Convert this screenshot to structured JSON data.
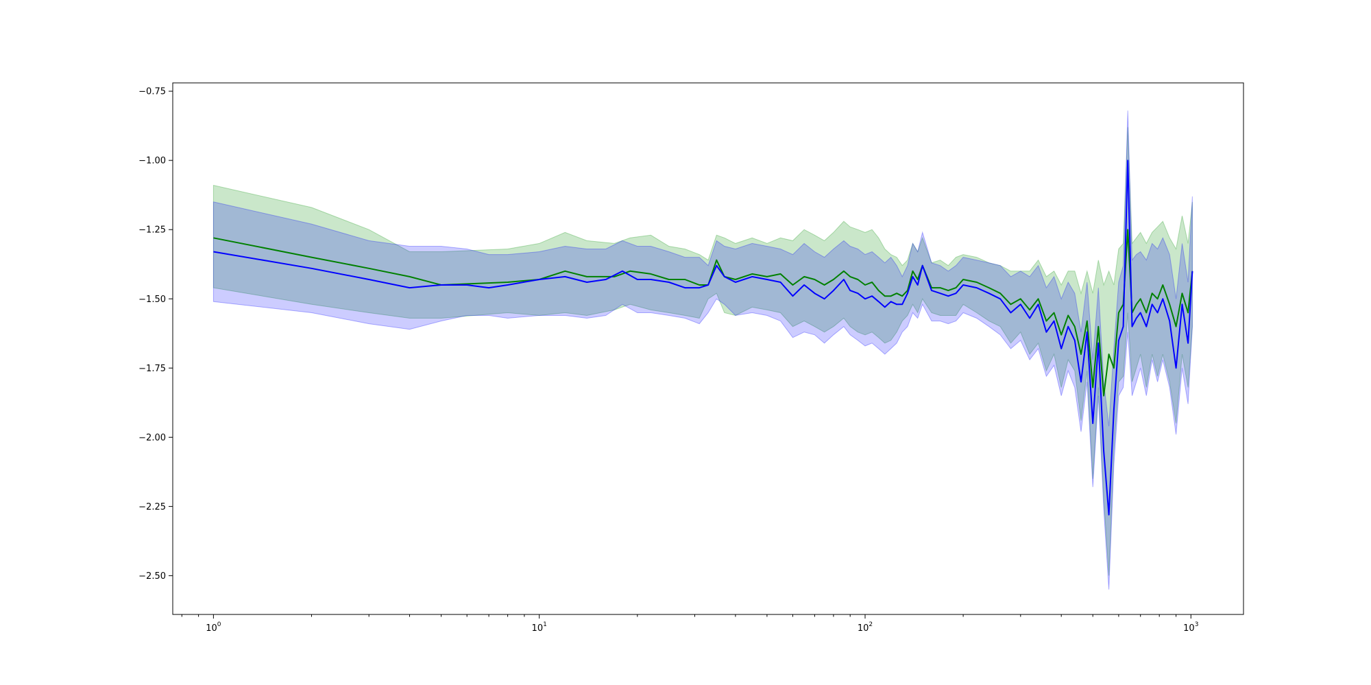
{
  "chart_data": {
    "type": "line",
    "title": "",
    "xlabel": "",
    "ylabel": "",
    "x_scale": "log",
    "xlim": [
      0.75,
      1450
    ],
    "ylim": [
      -2.64,
      -0.72
    ],
    "grid": false,
    "legend": "none",
    "x_ticks": [
      {
        "value": 1,
        "base": "10",
        "exp": "0"
      },
      {
        "value": 10,
        "base": "10",
        "exp": "1"
      },
      {
        "value": 100,
        "base": "10",
        "exp": "2"
      },
      {
        "value": 1000,
        "base": "10",
        "exp": "3"
      }
    ],
    "y_ticks": [
      {
        "value": -0.75,
        "label": "−0.75"
      },
      {
        "value": -1.0,
        "label": "−1.00"
      },
      {
        "value": -1.25,
        "label": "−1.25"
      },
      {
        "value": -1.5,
        "label": "−1.50"
      },
      {
        "value": -1.75,
        "label": "−1.75"
      },
      {
        "value": -2.0,
        "label": "−2.00"
      },
      {
        "value": -2.25,
        "label": "−2.25"
      },
      {
        "value": -2.5,
        "label": "−2.50"
      }
    ],
    "series": [
      {
        "color": "#008000",
        "band_color": "#2ca02c",
        "band_opacity": 0.25,
        "x": [
          1,
          2,
          3,
          4,
          5,
          8,
          10,
          12,
          14,
          17,
          19,
          22,
          25,
          28,
          31,
          33,
          35,
          37,
          40,
          45,
          50,
          55,
          60,
          65,
          70,
          75,
          80,
          86,
          90,
          95,
          100,
          105,
          110,
          115,
          120,
          125,
          130,
          135,
          140,
          145,
          150,
          160,
          170,
          180,
          190,
          200,
          220,
          240,
          260,
          280,
          300,
          320,
          340,
          360,
          380,
          400,
          420,
          440,
          460,
          480,
          500,
          520,
          540,
          560,
          580,
          600,
          620,
          640,
          660,
          680,
          700,
          730,
          760,
          790,
          820,
          860,
          900,
          940,
          980,
          1010
        ],
        "y": [
          -1.28,
          -1.35,
          -1.39,
          -1.42,
          -1.45,
          -1.44,
          -1.43,
          -1.4,
          -1.42,
          -1.42,
          -1.4,
          -1.41,
          -1.43,
          -1.43,
          -1.45,
          -1.45,
          -1.36,
          -1.42,
          -1.43,
          -1.41,
          -1.42,
          -1.41,
          -1.45,
          -1.42,
          -1.43,
          -1.45,
          -1.43,
          -1.4,
          -1.42,
          -1.43,
          -1.45,
          -1.44,
          -1.47,
          -1.49,
          -1.49,
          -1.48,
          -1.49,
          -1.47,
          -1.4,
          -1.43,
          -1.38,
          -1.46,
          -1.46,
          -1.47,
          -1.46,
          -1.43,
          -1.44,
          -1.46,
          -1.48,
          -1.52,
          -1.5,
          -1.54,
          -1.5,
          -1.58,
          -1.55,
          -1.63,
          -1.56,
          -1.6,
          -1.7,
          -1.58,
          -1.82,
          -1.6,
          -1.85,
          -1.7,
          -1.75,
          -1.55,
          -1.52,
          -1.25,
          -1.55,
          -1.52,
          -1.5,
          -1.55,
          -1.48,
          -1.5,
          -1.45,
          -1.52,
          -1.6,
          -1.48,
          -1.55,
          -1.4
        ],
        "lower": [
          -1.46,
          -1.52,
          -1.55,
          -1.57,
          -1.57,
          -1.55,
          -1.56,
          -1.55,
          -1.56,
          -1.54,
          -1.52,
          -1.54,
          -1.55,
          -1.56,
          -1.57,
          -1.5,
          -1.48,
          -1.55,
          -1.56,
          -1.53,
          -1.54,
          -1.55,
          -1.6,
          -1.58,
          -1.6,
          -1.62,
          -1.6,
          -1.57,
          -1.6,
          -1.62,
          -1.63,
          -1.62,
          -1.64,
          -1.66,
          -1.65,
          -1.62,
          -1.58,
          -1.56,
          -1.52,
          -1.55,
          -1.5,
          -1.55,
          -1.56,
          -1.56,
          -1.56,
          -1.52,
          -1.55,
          -1.58,
          -1.6,
          -1.66,
          -1.62,
          -1.7,
          -1.66,
          -1.76,
          -1.7,
          -1.82,
          -1.72,
          -1.76,
          -1.94,
          -1.76,
          -2.15,
          -1.82,
          -2.22,
          -2.5,
          -2.05,
          -1.8,
          -1.78,
          -1.55,
          -1.8,
          -1.75,
          -1.7,
          -1.82,
          -1.7,
          -1.78,
          -1.7,
          -1.8,
          -1.95,
          -1.7,
          -1.82,
          -1.6
        ],
        "upper": [
          -1.09,
          -1.17,
          -1.25,
          -1.33,
          -1.33,
          -1.32,
          -1.3,
          -1.26,
          -1.29,
          -1.3,
          -1.28,
          -1.27,
          -1.31,
          -1.32,
          -1.34,
          -1.36,
          -1.27,
          -1.28,
          -1.3,
          -1.28,
          -1.3,
          -1.28,
          -1.29,
          -1.25,
          -1.27,
          -1.29,
          -1.26,
          -1.22,
          -1.24,
          -1.25,
          -1.26,
          -1.25,
          -1.28,
          -1.32,
          -1.34,
          -1.35,
          -1.38,
          -1.36,
          -1.3,
          -1.33,
          -1.28,
          -1.37,
          -1.36,
          -1.38,
          -1.35,
          -1.34,
          -1.35,
          -1.37,
          -1.38,
          -1.4,
          -1.4,
          -1.4,
          -1.36,
          -1.42,
          -1.4,
          -1.45,
          -1.4,
          -1.4,
          -1.48,
          -1.4,
          -1.48,
          -1.36,
          -1.45,
          -1.4,
          -1.45,
          -1.32,
          -1.3,
          -0.88,
          -1.3,
          -1.28,
          -1.26,
          -1.3,
          -1.26,
          -1.24,
          -1.22,
          -1.28,
          -1.32,
          -1.2,
          -1.3,
          -1.15
        ]
      },
      {
        "color": "#0000ff",
        "band_color": "#0000ff",
        "band_opacity": 0.2,
        "x": [
          1,
          2,
          3,
          4,
          5,
          6,
          7,
          8,
          10,
          12,
          14,
          16,
          18,
          20,
          22,
          25,
          28,
          31,
          33,
          35,
          37,
          40,
          45,
          50,
          55,
          60,
          65,
          70,
          75,
          80,
          86,
          90,
          95,
          100,
          105,
          110,
          115,
          120,
          125,
          130,
          135,
          140,
          145,
          150,
          160,
          170,
          180,
          190,
          200,
          220,
          240,
          260,
          280,
          300,
          320,
          340,
          360,
          380,
          400,
          420,
          440,
          460,
          480,
          500,
          520,
          540,
          560,
          580,
          600,
          620,
          640,
          660,
          680,
          700,
          730,
          760,
          790,
          820,
          860,
          900,
          940,
          980,
          1010
        ],
        "y": [
          -1.33,
          -1.39,
          -1.43,
          -1.46,
          -1.45,
          -1.45,
          -1.46,
          -1.45,
          -1.43,
          -1.42,
          -1.44,
          -1.43,
          -1.4,
          -1.43,
          -1.43,
          -1.44,
          -1.46,
          -1.46,
          -1.45,
          -1.38,
          -1.42,
          -1.44,
          -1.42,
          -1.43,
          -1.44,
          -1.49,
          -1.45,
          -1.48,
          -1.5,
          -1.47,
          -1.43,
          -1.47,
          -1.48,
          -1.5,
          -1.49,
          -1.51,
          -1.53,
          -1.51,
          -1.52,
          -1.52,
          -1.48,
          -1.42,
          -1.45,
          -1.38,
          -1.47,
          -1.48,
          -1.49,
          -1.48,
          -1.45,
          -1.46,
          -1.48,
          -1.5,
          -1.55,
          -1.52,
          -1.57,
          -1.52,
          -1.62,
          -1.58,
          -1.68,
          -1.6,
          -1.65,
          -1.8,
          -1.62,
          -1.95,
          -1.66,
          -2.05,
          -2.28,
          -1.9,
          -1.65,
          -1.6,
          -1.0,
          -1.6,
          -1.57,
          -1.55,
          -1.6,
          -1.52,
          -1.55,
          -1.5,
          -1.58,
          -1.75,
          -1.52,
          -1.66,
          -1.4
        ],
        "lower": [
          -1.51,
          -1.55,
          -1.59,
          -1.61,
          -1.58,
          -1.56,
          -1.56,
          -1.57,
          -1.56,
          -1.56,
          -1.57,
          -1.56,
          -1.52,
          -1.55,
          -1.55,
          -1.56,
          -1.57,
          -1.59,
          -1.55,
          -1.5,
          -1.52,
          -1.56,
          -1.55,
          -1.56,
          -1.58,
          -1.64,
          -1.62,
          -1.63,
          -1.66,
          -1.63,
          -1.6,
          -1.63,
          -1.65,
          -1.67,
          -1.66,
          -1.68,
          -1.7,
          -1.68,
          -1.66,
          -1.62,
          -1.6,
          -1.55,
          -1.57,
          -1.52,
          -1.58,
          -1.58,
          -1.59,
          -1.58,
          -1.55,
          -1.57,
          -1.6,
          -1.63,
          -1.68,
          -1.65,
          -1.72,
          -1.68,
          -1.78,
          -1.74,
          -1.85,
          -1.76,
          -1.82,
          -1.98,
          -1.8,
          -2.18,
          -1.85,
          -2.26,
          -2.55,
          -2.1,
          -1.85,
          -1.82,
          -1.62,
          -1.85,
          -1.8,
          -1.75,
          -1.85,
          -1.72,
          -1.8,
          -1.72,
          -1.82,
          -1.99,
          -1.75,
          -1.88,
          -1.6
        ],
        "upper": [
          -1.15,
          -1.23,
          -1.29,
          -1.31,
          -1.31,
          -1.32,
          -1.34,
          -1.34,
          -1.33,
          -1.31,
          -1.32,
          -1.32,
          -1.29,
          -1.31,
          -1.31,
          -1.33,
          -1.35,
          -1.35,
          -1.38,
          -1.29,
          -1.31,
          -1.32,
          -1.3,
          -1.31,
          -1.32,
          -1.34,
          -1.3,
          -1.33,
          -1.35,
          -1.32,
          -1.29,
          -1.31,
          -1.32,
          -1.34,
          -1.33,
          -1.35,
          -1.37,
          -1.35,
          -1.38,
          -1.42,
          -1.38,
          -1.3,
          -1.33,
          -1.26,
          -1.37,
          -1.38,
          -1.4,
          -1.38,
          -1.35,
          -1.36,
          -1.37,
          -1.38,
          -1.42,
          -1.4,
          -1.42,
          -1.38,
          -1.46,
          -1.42,
          -1.5,
          -1.44,
          -1.48,
          -1.62,
          -1.44,
          -1.72,
          -1.46,
          -1.8,
          -1.96,
          -1.68,
          -1.44,
          -1.38,
          -0.82,
          -1.36,
          -1.34,
          -1.33,
          -1.36,
          -1.3,
          -1.32,
          -1.28,
          -1.34,
          -1.5,
          -1.3,
          -1.44,
          -1.13
        ]
      }
    ]
  }
}
